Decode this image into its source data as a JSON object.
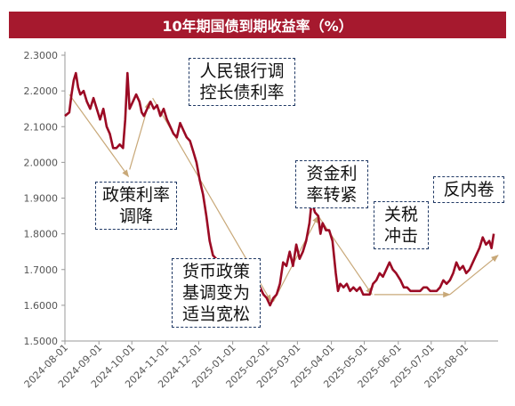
{
  "chart_data": {
    "type": "line",
    "title": "10年期国债到期收益率（%）",
    "xlabel": "",
    "ylabel": "",
    "ylim": [
      1.5,
      2.3
    ],
    "yticks": [
      "1.5000",
      "1.6000",
      "1.7000",
      "1.8000",
      "1.9000",
      "2.0000",
      "2.1000",
      "2.2000",
      "2.3000"
    ],
    "xticks": [
      "2024-08-01",
      "2024-09-01",
      "2024-10-01",
      "2024-11-01",
      "2024-12-01",
      "2025-01-01",
      "2025-02-01",
      "2025-03-01",
      "2025-04-01",
      "2025-05-01",
      "2025-06-01",
      "2025-07-01",
      "2025-08-01"
    ],
    "grid": false,
    "legend": "none",
    "line_color": "#9b0a24",
    "arrow_color": "#c8a878",
    "series": [
      {
        "values": [
          [
            "2024-08-01",
            2.13
          ],
          [
            "2024-08-03",
            2.135
          ],
          [
            "2024-08-05",
            2.14
          ],
          [
            "2024-08-07",
            2.19
          ],
          [
            "2024-08-09",
            2.23
          ],
          [
            "2024-08-11",
            2.25
          ],
          [
            "2024-08-13",
            2.21
          ],
          [
            "2024-08-15",
            2.19
          ],
          [
            "2024-08-18",
            2.2
          ],
          [
            "2024-08-21",
            2.17
          ],
          [
            "2024-08-24",
            2.15
          ],
          [
            "2024-08-27",
            2.18
          ],
          [
            "2024-08-30",
            2.15
          ],
          [
            "2024-09-02",
            2.12
          ],
          [
            "2024-09-05",
            2.15
          ],
          [
            "2024-09-08",
            2.1
          ],
          [
            "2024-09-11",
            2.08
          ],
          [
            "2024-09-14",
            2.04
          ],
          [
            "2024-09-17",
            2.04
          ],
          [
            "2024-09-20",
            2.05
          ],
          [
            "2024-09-23",
            2.04
          ],
          [
            "2024-09-25",
            2.12
          ],
          [
            "2024-09-27",
            2.25
          ],
          [
            "2024-09-29",
            2.15
          ],
          [
            "2024-10-02",
            2.17
          ],
          [
            "2024-10-05",
            2.19
          ],
          [
            "2024-10-08",
            2.17
          ],
          [
            "2024-10-10",
            2.14
          ],
          [
            "2024-10-12",
            2.13
          ],
          [
            "2024-10-15",
            2.15
          ],
          [
            "2024-10-18",
            2.17
          ],
          [
            "2024-10-21",
            2.15
          ],
          [
            "2024-10-24",
            2.16
          ],
          [
            "2024-10-27",
            2.13
          ],
          [
            "2024-10-30",
            2.15
          ],
          [
            "2024-11-02",
            2.12
          ],
          [
            "2024-11-05",
            2.1
          ],
          [
            "2024-11-08",
            2.08
          ],
          [
            "2024-11-11",
            2.07
          ],
          [
            "2024-11-14",
            2.11
          ],
          [
            "2024-11-17",
            2.09
          ],
          [
            "2024-11-20",
            2.07
          ],
          [
            "2024-11-23",
            2.06
          ],
          [
            "2024-11-26",
            2.03
          ],
          [
            "2024-11-29",
            2.0
          ],
          [
            "2024-12-02",
            1.95
          ],
          [
            "2024-12-05",
            1.91
          ],
          [
            "2024-12-08",
            1.85
          ],
          [
            "2024-12-11",
            1.78
          ],
          [
            "2024-12-14",
            1.74
          ],
          [
            "2024-12-17",
            1.73
          ],
          [
            "2024-12-20",
            1.71
          ],
          [
            "2024-12-23",
            1.7
          ],
          [
            "2024-12-26",
            1.68
          ],
          [
            "2024-12-29",
            1.67
          ],
          [
            "2025-01-02",
            1.63
          ],
          [
            "2025-01-05",
            1.61
          ],
          [
            "2025-01-08",
            1.64
          ],
          [
            "2025-01-11",
            1.62
          ],
          [
            "2025-01-14",
            1.66
          ],
          [
            "2025-01-17",
            1.64
          ],
          [
            "2025-01-20",
            1.66
          ],
          [
            "2025-01-23",
            1.66
          ],
          [
            "2025-01-26",
            1.65
          ],
          [
            "2025-01-29",
            1.63
          ],
          [
            "2025-02-01",
            1.62
          ],
          [
            "2025-02-04",
            1.6
          ],
          [
            "2025-02-07",
            1.62
          ],
          [
            "2025-02-10",
            1.63
          ],
          [
            "2025-02-13",
            1.66
          ],
          [
            "2025-02-16",
            1.72
          ],
          [
            "2025-02-19",
            1.71
          ],
          [
            "2025-02-22",
            1.75
          ],
          [
            "2025-02-25",
            1.71
          ],
          [
            "2025-02-28",
            1.77
          ],
          [
            "2025-03-03",
            1.73
          ],
          [
            "2025-03-06",
            1.75
          ],
          [
            "2025-03-09",
            1.78
          ],
          [
            "2025-03-12",
            1.83
          ],
          [
            "2025-03-14",
            1.89
          ],
          [
            "2025-03-17",
            1.86
          ],
          [
            "2025-03-20",
            1.85
          ],
          [
            "2025-03-22",
            1.8
          ],
          [
            "2025-03-24",
            1.83
          ],
          [
            "2025-03-27",
            1.81
          ],
          [
            "2025-03-30",
            1.81
          ],
          [
            "2025-04-02",
            1.78
          ],
          [
            "2025-04-05",
            1.69
          ],
          [
            "2025-04-07",
            1.64
          ],
          [
            "2025-04-09",
            1.66
          ],
          [
            "2025-04-12",
            1.65
          ],
          [
            "2025-04-15",
            1.66
          ],
          [
            "2025-04-18",
            1.64
          ],
          [
            "2025-04-21",
            1.65
          ],
          [
            "2025-04-24",
            1.64
          ],
          [
            "2025-04-27",
            1.65
          ],
          [
            "2025-04-30",
            1.63
          ],
          [
            "2025-05-03",
            1.63
          ],
          [
            "2025-05-06",
            1.63
          ],
          [
            "2025-05-09",
            1.66
          ],
          [
            "2025-05-12",
            1.67
          ],
          [
            "2025-05-15",
            1.69
          ],
          [
            "2025-05-18",
            1.68
          ],
          [
            "2025-05-21",
            1.7
          ],
          [
            "2025-05-24",
            1.72
          ],
          [
            "2025-05-27",
            1.7
          ],
          [
            "2025-05-30",
            1.69
          ],
          [
            "2025-06-03",
            1.67
          ],
          [
            "2025-06-06",
            1.65
          ],
          [
            "2025-06-09",
            1.65
          ],
          [
            "2025-06-12",
            1.64
          ],
          [
            "2025-06-15",
            1.64
          ],
          [
            "2025-06-18",
            1.64
          ],
          [
            "2025-06-21",
            1.64
          ],
          [
            "2025-06-24",
            1.65
          ],
          [
            "2025-06-27",
            1.65
          ],
          [
            "2025-06-30",
            1.64
          ],
          [
            "2025-07-03",
            1.64
          ],
          [
            "2025-07-06",
            1.64
          ],
          [
            "2025-07-09",
            1.65
          ],
          [
            "2025-07-12",
            1.67
          ],
          [
            "2025-07-15",
            1.66
          ],
          [
            "2025-07-18",
            1.67
          ],
          [
            "2025-07-21",
            1.69
          ],
          [
            "2025-07-24",
            1.72
          ],
          [
            "2025-07-27",
            1.7
          ],
          [
            "2025-07-30",
            1.71
          ],
          [
            "2025-08-02",
            1.69
          ],
          [
            "2025-08-05",
            1.7
          ],
          [
            "2025-08-08",
            1.72
          ],
          [
            "2025-08-11",
            1.74
          ],
          [
            "2025-08-14",
            1.76
          ],
          [
            "2025-08-17",
            1.79
          ],
          [
            "2025-08-20",
            1.77
          ],
          [
            "2025-08-23",
            1.78
          ],
          [
            "2025-08-25",
            1.76
          ],
          [
            "2025-08-27",
            1.8
          ]
        ]
      }
    ],
    "annotations": [
      {
        "text": "人民银行调\n控长债利率"
      },
      {
        "text": "政策利率\n调降"
      },
      {
        "text": "货币政策\n基调变为\n适当宽松"
      },
      {
        "text": "资金利\n率转紧"
      },
      {
        "text": "关税\n冲击"
      },
      {
        "text": "反内卷"
      }
    ],
    "trend_arrows": [
      {
        "from": [
          "2024-08-05",
          2.19
        ],
        "to": [
          "2024-09-28",
          1.96
        ]
      },
      {
        "from": [
          "2024-09-29",
          1.98
        ],
        "to": [
          "2024-10-17",
          2.17
        ]
      },
      {
        "from": [
          "2024-10-20",
          2.18
        ],
        "to": [
          "2025-02-05",
          1.61
        ]
      },
      {
        "from": [
          "2025-02-07",
          1.61
        ],
        "to": [
          "2025-03-20",
          1.85
        ]
      },
      {
        "from": [
          "2025-03-20",
          1.85
        ],
        "to": [
          "2025-05-08",
          1.63
        ]
      },
      {
        "from": [
          "2025-05-10",
          1.63
        ],
        "to": [
          "2025-07-18",
          1.63
        ]
      },
      {
        "from": [
          "2025-07-18",
          1.63
        ],
        "to": [
          "2025-08-31",
          1.74
        ]
      }
    ]
  }
}
